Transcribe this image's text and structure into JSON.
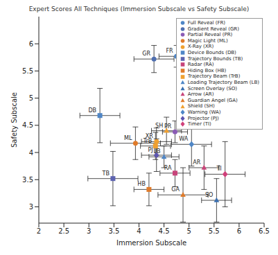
{
  "chart_data": {
    "type": "scatter",
    "title": "Expert Scores All Techniques (Immersion Subscale vs Safety Subscale)",
    "x_label": "Immersion Subscale",
    "y_label": "Safety Subscale",
    "xlim": [
      2,
      6.5
    ],
    "ylim": [
      2.7,
      6.5
    ],
    "xticks": [
      2,
      2.5,
      3,
      3.5,
      4,
      4.5,
      5,
      5.5,
      6,
      6.5
    ],
    "yticks": [
      3,
      3.5,
      4,
      4.5,
      5,
      5.5,
      6
    ],
    "legend": "top-right",
    "series": [
      {
        "name": "Full Reveal (FR)",
        "label": "FR",
        "color": "#4f86c6",
        "marker": "circle",
        "x": [
          4.75
        ],
        "y": [
          5.77
        ],
        "x_error": [
          0.35
        ],
        "y_error": [
          0.2
        ]
      },
      {
        "name": "Gradient Reveal (GR)",
        "label": "GR",
        "color": "#4f6fb0",
        "marker": "circle",
        "x": [
          4.3
        ],
        "y": [
          5.72
        ],
        "x_error": [
          0.4
        ],
        "y_error": [
          0.25
        ]
      },
      {
        "name": "Partial Reveal (PR)",
        "label": "PR",
        "color": "#8b5bb5",
        "marker": "circle",
        "x": [
          4.72
        ],
        "y": [
          4.38
        ],
        "x_error": [
          0.25
        ],
        "y_error": [
          0.2
        ]
      },
      {
        "name": "Magic Light (ML)",
        "label": "ML",
        "color": "#e07b2a",
        "marker": "circle",
        "x": [
          3.93
        ],
        "y": [
          4.17
        ],
        "x_error": [
          0.5
        ],
        "y_error": [
          0.3
        ]
      },
      {
        "name": "X-Ray (XR)",
        "label": "XR",
        "color": "#f0a030",
        "marker": "circle",
        "x": [
          4.35
        ],
        "y": [
          4.2
        ],
        "x_error": [
          0.3
        ],
        "y_error": [
          0.25
        ]
      },
      {
        "name": "Device Bounds (DB)",
        "label": "DB",
        "color": "#4f86c6",
        "marker": "square",
        "x": [
          3.22
        ],
        "y": [
          4.68
        ],
        "x_error": [
          0.4
        ],
        "y_error": [
          0.5
        ]
      },
      {
        "name": "Trajectory Bounds (TB)",
        "label": "TB",
        "color": "#5d63b0",
        "marker": "square",
        "x": [
          3.48
        ],
        "y": [
          3.52
        ],
        "x_error": [
          0.5
        ],
        "y_error": [
          0.5
        ]
      },
      {
        "name": "Radar (RA)",
        "label": "RA",
        "color": "#c8447a",
        "marker": "square",
        "x": [
          4.72
        ],
        "y": [
          3.62
        ],
        "x_error": [
          0.3
        ],
        "y_error": [
          0.25
        ]
      },
      {
        "name": "Hiding Box (HB)",
        "label": "HB",
        "color": "#e07b2a",
        "marker": "square",
        "x": [
          4.2
        ],
        "y": [
          3.32
        ],
        "x_error": [
          0.3
        ],
        "y_error": [
          0.3
        ]
      },
      {
        "name": "Trajectory Beam (TrB)",
        "label": "TrB",
        "color": "#f0a030",
        "marker": "square",
        "x": [
          4.33
        ],
        "y": [
          4.12
        ],
        "x_error": [
          0.3
        ],
        "y_error": [
          0.25
        ]
      },
      {
        "name": "Loading Trajectory Beam (LB)",
        "label": "LB",
        "color": "#4f86c6",
        "marker": "triangle",
        "x": [
          4.5
        ],
        "y": [
          3.92
        ],
        "x_error": [
          0.3
        ],
        "y_error": [
          0.2
        ]
      },
      {
        "name": "Screen Overlay (SO)",
        "label": "SO",
        "color": "#3a6fb0",
        "marker": "triangle",
        "x": [
          5.55
        ],
        "y": [
          3.12
        ],
        "x_error": [
          0.3
        ],
        "y_error": [
          0.4
        ]
      },
      {
        "name": "Arrow (AR)",
        "label": "AR",
        "color": "#c8447a",
        "marker": "triangle",
        "x": [
          5.3
        ],
        "y": [
          3.72
        ],
        "x_error": [
          0.3
        ],
        "y_error": [
          0.4
        ]
      },
      {
        "name": "Guardian Angel (GA)",
        "label": "GA",
        "color": "#e07b2a",
        "marker": "triangle",
        "x": [
          4.88
        ],
        "y": [
          3.22
        ],
        "x_error": [
          0.5
        ],
        "y_error": [
          0.5
        ]
      },
      {
        "name": "Shield (SH)",
        "label": "SH",
        "color": "#f0a030",
        "marker": "triangle",
        "x": [
          4.55
        ],
        "y": [
          4.4
        ],
        "x_error": [
          0.3
        ],
        "y_error": [
          0.25
        ]
      },
      {
        "name": "Warning (WA)",
        "label": "WA",
        "color": "#4f86c6",
        "marker": "diamond",
        "x": [
          5.05
        ],
        "y": [
          4.15
        ],
        "x_error": [
          0.4
        ],
        "y_error": [
          0.4
        ]
      },
      {
        "name": "Projector (PJ)",
        "label": "PJ",
        "color": "#5d55b0",
        "marker": "diamond",
        "x": [
          4.35
        ],
        "y": [
          3.95
        ],
        "x_error": [
          0.3
        ],
        "y_error": [
          0.3
        ]
      },
      {
        "name": "Timer (TI)",
        "label": "TI",
        "color": "#d0407a",
        "marker": "diamond",
        "x": [
          5.72
        ],
        "y": [
          3.6
        ],
        "x_error": [
          0.4
        ],
        "y_error": [
          0.6
        ]
      }
    ]
  }
}
